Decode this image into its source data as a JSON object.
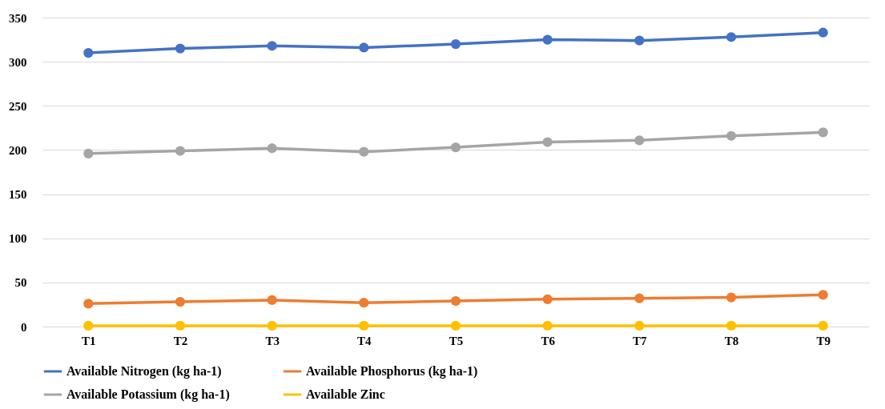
{
  "chart_data": {
    "type": "line",
    "categories": [
      "T1",
      "T2",
      "T3",
      "T4",
      "T5",
      "T6",
      "T7",
      "T8",
      "T9"
    ],
    "series": [
      {
        "name": "Available Nitrogen (kg ha-1)",
        "color": "#4472c4",
        "values": [
          310,
          315,
          318,
          316,
          320,
          325,
          324,
          328,
          333
        ]
      },
      {
        "name": "Available Phosphorus (kg ha-1)",
        "color": "#ed7d31",
        "values": [
          26,
          28,
          30,
          27,
          29,
          31,
          32,
          33,
          36
        ]
      },
      {
        "name": "Available Potassium (kg ha-1)",
        "color": "#a5a5a5",
        "values": [
          196,
          199,
          202,
          198,
          203,
          209,
          211,
          216,
          220
        ]
      },
      {
        "name": "Available Zinc",
        "color": "#ffc000",
        "values": [
          1,
          1,
          1,
          1,
          1,
          1,
          1,
          1,
          1
        ]
      }
    ],
    "ylim": [
      0,
      350
    ],
    "yticks": [
      0,
      50,
      100,
      150,
      200,
      250,
      300,
      350
    ],
    "grid": "y",
    "legend": "bottom",
    "marker": "circle",
    "line_style": "solid"
  }
}
